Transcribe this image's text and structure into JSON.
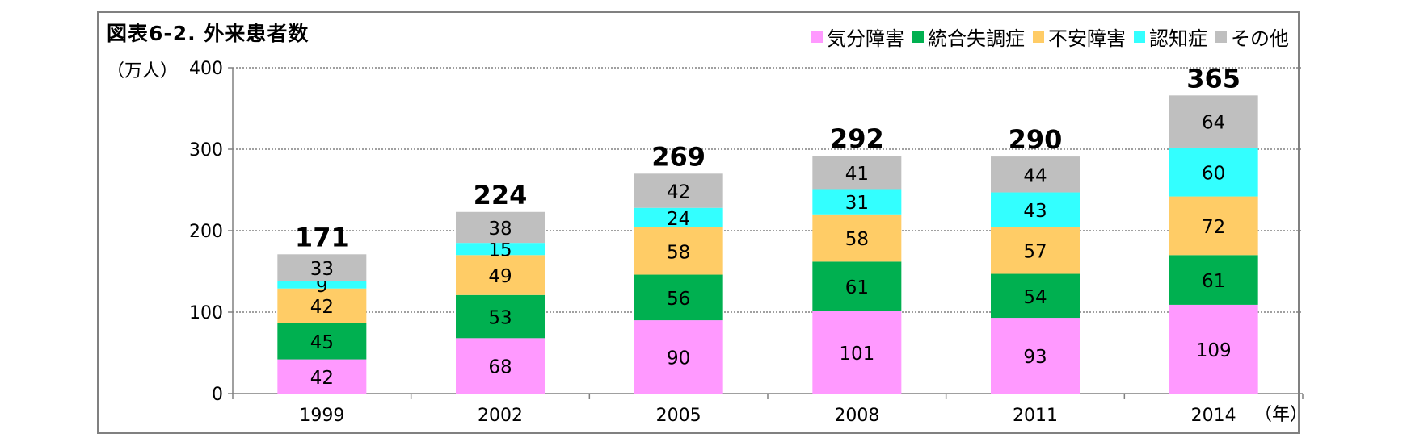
{
  "chart_data": {
    "type": "bar",
    "stacked": true,
    "title": "図表6-2. 外来患者数",
    "unit_label": "（万人）",
    "x_unit_label": "（年）",
    "categories": [
      "1999",
      "2002",
      "2005",
      "2008",
      "2011",
      "2014"
    ],
    "ylim": [
      0,
      400
    ],
    "yticks": [
      0,
      100,
      200,
      300,
      400
    ],
    "grid": true,
    "legend_position": "top-right",
    "series": [
      {
        "name": "気分障害",
        "color": "#FF99FF",
        "values": [
          42,
          68,
          90,
          101,
          93,
          109
        ]
      },
      {
        "name": "統合失調症",
        "color": "#00B050",
        "values": [
          45,
          53,
          56,
          61,
          54,
          61
        ]
      },
      {
        "name": "不安障害",
        "color": "#FFCC66",
        "values": [
          42,
          49,
          58,
          58,
          57,
          72
        ]
      },
      {
        "name": "認知症",
        "color": "#33FFFF",
        "values": [
          9,
          15,
          24,
          31,
          43,
          60
        ]
      },
      {
        "name": "その他",
        "color": "#BFBFBF",
        "values": [
          33,
          38,
          42,
          41,
          44,
          64
        ]
      }
    ],
    "totals": [
      171,
      224,
      269,
      292,
      290,
      365
    ]
  }
}
